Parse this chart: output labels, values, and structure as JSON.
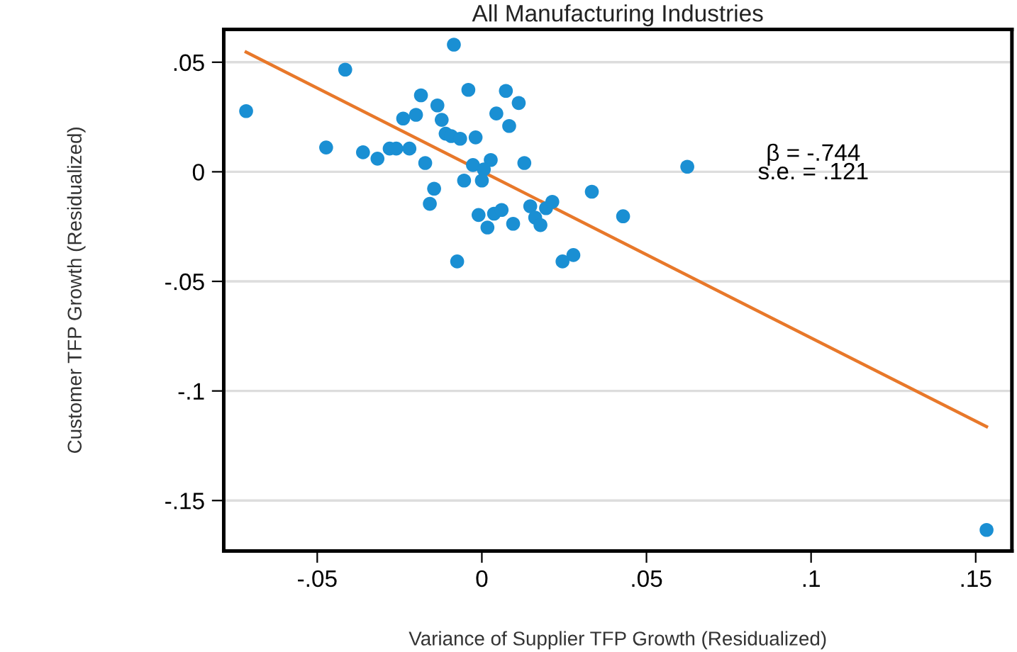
{
  "chart_data": {
    "type": "scatter",
    "title": "All Manufacturing Industries",
    "xlabel": "Variance of Supplier TFP Growth (Residualized)",
    "ylabel": "Customer TFP Growth (Residualized)",
    "series": [
      {
        "color": "#1a8fd3",
        "marker": "circle",
        "x": [
          -0.0716,
          -0.0415,
          -0.0085,
          -0.0473,
          -0.0361,
          -0.0317,
          -0.028,
          -0.026,
          -0.022,
          -0.0239,
          -0.02,
          -0.0185,
          -0.0172,
          -0.0135,
          -0.0122,
          -0.011,
          -0.0093,
          -0.0066,
          -0.0019,
          -0.0041,
          0.0073,
          0.0112,
          0.0044,
          0.0083,
          0.0027,
          -0.0027,
          0.0006,
          0.0129,
          -0.0054,
          0.0,
          -0.0145,
          -0.0158,
          -0.001,
          0.0017,
          0.0037,
          0.006,
          0.0095,
          0.0147,
          0.0162,
          0.0178,
          0.0195,
          0.0214,
          -0.0075,
          0.0245,
          0.0278,
          0.0334,
          0.0429,
          0.0624,
          0.1533
        ],
        "values": [
          0.0277,
          0.0466,
          0.058,
          0.0111,
          0.0089,
          0.006,
          0.0106,
          0.0106,
          0.0106,
          0.0243,
          0.026,
          0.0349,
          0.004,
          0.0303,
          0.0237,
          0.0174,
          0.0163,
          0.0151,
          0.0157,
          0.0374,
          0.0369,
          0.0314,
          0.0266,
          0.0209,
          0.0054,
          0.0031,
          0.0011,
          0.004,
          -0.004,
          -0.004,
          -0.0077,
          -0.0146,
          -0.0197,
          -0.0254,
          -0.0191,
          -0.0174,
          -0.0237,
          -0.0157,
          -0.0209,
          -0.0243,
          -0.0166,
          -0.0137,
          -0.0409,
          -0.0409,
          -0.038,
          -0.0091,
          -0.0203,
          0.0023,
          -0.1634
        ]
      },
      {
        "type": "line",
        "color": "#e8782a",
        "marker": "none",
        "line_style": "solid",
        "x": [
          -0.0716,
          0.1533
        ],
        "values": [
          0.0546,
          -0.1163
        ]
      }
    ],
    "annotations": [
      "β = -.744\ns.e. = .121"
    ],
    "xlim": [
      -0.0784,
      0.161
    ],
    "ylim": [
      -0.173,
      0.065
    ],
    "xticks": [
      {
        "value": -0.05,
        "label": "-.05"
      },
      0,
      {
        "value": 0.05,
        "label": ".05"
      },
      {
        "value": 0.1,
        "label": ".1"
      },
      {
        "value": 0.15,
        "label": ".15"
      }
    ],
    "yticks": [
      {
        "value": -0.15,
        "label": "-.15"
      },
      {
        "value": -0.1,
        "label": "-.1"
      },
      {
        "value": -0.05,
        "label": "-.05"
      },
      0,
      {
        "value": 0.05,
        "label": ".05"
      }
    ],
    "grid": "y",
    "legend": false
  }
}
